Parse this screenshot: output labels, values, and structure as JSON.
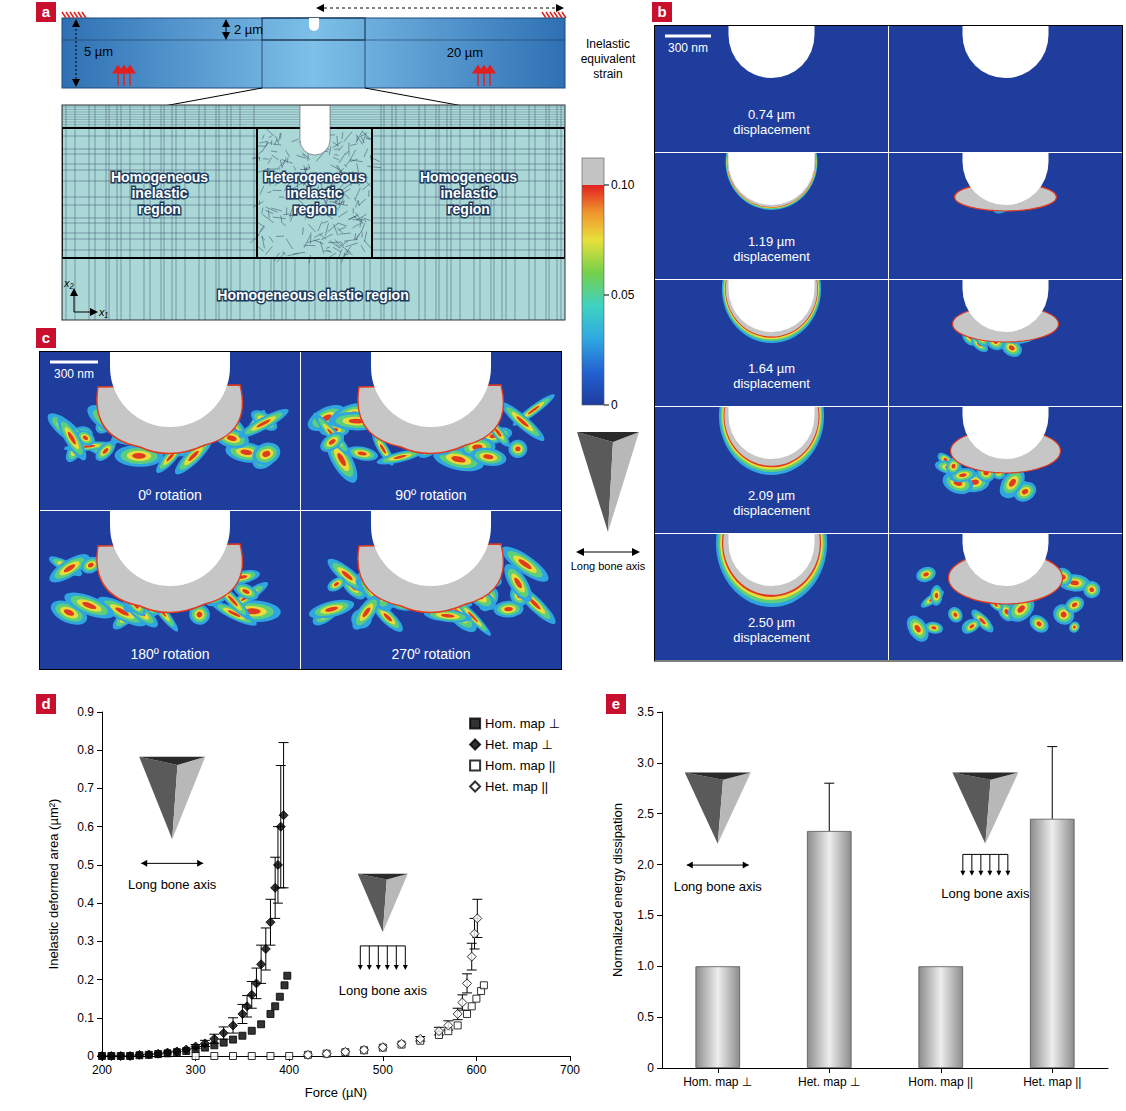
{
  "panel_a": {
    "label": "a",
    "dimensions": [
      "5 µm",
      "2 µm",
      "20 µm"
    ],
    "regions": [
      "Homogeneous inelastic region",
      "Heterogeneous inelastic region",
      "Homogeneous inelastic region",
      "Homogeneous elastic region"
    ],
    "axes": [
      "x₂",
      "x₁"
    ]
  },
  "colorbar": {
    "title": "Inelastic equivalent strain",
    "range": [
      0,
      0.1
    ],
    "ticks": [
      0,
      0.05,
      {
        "value": 0.1,
        "label": "0.10"
      }
    ]
  },
  "panel_b": {
    "label": "b",
    "scale_bar": "300 nm",
    "rows": [
      "0.74 µm displacement",
      "1.19 µm displacement",
      "1.64 µm displacement",
      "2.09 µm displacement",
      "2.50 µm displacement"
    ]
  },
  "panel_c": {
    "label": "c",
    "scale_bar": "300 nm",
    "cells": [
      "0º rotation",
      "90º rotation",
      "180º rotation",
      "270º rotation"
    ]
  },
  "indenter_label": "Long bone axis",
  "chart_data": [
    {
      "label": "d",
      "type": "scatter",
      "xlabel": "Force (µN)",
      "ylabel": "Inelastic deformed area (µm²)",
      "xlim": [
        200,
        700
      ],
      "xticks": [
        200,
        300,
        400,
        500,
        600,
        700
      ],
      "ylim": [
        0,
        0.9
      ],
      "yticks": [
        0,
        0.1,
        0.2,
        0.3,
        0.4,
        0.5,
        0.6,
        0.7,
        0.8,
        0.9
      ],
      "legend": "upper right",
      "annotations": [
        "Long bone axis",
        "Long bone axis"
      ],
      "series": [
        {
          "name": "Hom. map ⊥",
          "marker": "square",
          "color": "#000000",
          "x": [
            200,
            210,
            220,
            230,
            240,
            250,
            260,
            270,
            280,
            290,
            300,
            310,
            320,
            330,
            340,
            350,
            360,
            370,
            380,
            385,
            390,
            395,
            398
          ],
          "values": [
            0,
            0,
            0,
            0,
            0.002,
            0.003,
            0.005,
            0.007,
            0.01,
            0.013,
            0.017,
            0.022,
            0.028,
            0.035,
            0.043,
            0.053,
            0.066,
            0.083,
            0.11,
            0.13,
            0.155,
            0.185,
            0.21
          ]
        },
        {
          "name": "Het. map ⊥",
          "marker": "diamond",
          "color": "#000000",
          "x": [
            200,
            210,
            220,
            230,
            240,
            250,
            260,
            270,
            280,
            290,
            300,
            310,
            320,
            330,
            340,
            350,
            355,
            360,
            365,
            370,
            375,
            380,
            385,
            388,
            391,
            394
          ],
          "values": [
            0,
            0,
            0,
            0,
            0.003,
            0.004,
            0.006,
            0.009,
            0.012,
            0.017,
            0.025,
            0.033,
            0.045,
            0.06,
            0.08,
            0.11,
            0.13,
            0.16,
            0.19,
            0.24,
            0.28,
            0.35,
            0.44,
            0.5,
            0.6,
            0.63
          ],
          "errors": [
            null,
            null,
            null,
            null,
            null,
            null,
            null,
            null,
            null,
            null,
            0.005,
            0.008,
            0.012,
            0.016,
            0.02,
            0.025,
            0.028,
            0.035,
            0.04,
            0.05,
            0.055,
            0.06,
            0.08,
            0.1,
            0.16,
            0.19
          ]
        },
        {
          "name": "Hom. map ||",
          "marker": "open_square",
          "color": "#000000",
          "x": [
            300,
            320,
            340,
            360,
            380,
            400,
            420,
            440,
            460,
            480,
            500,
            520,
            540,
            560,
            570,
            580,
            590,
            595,
            600,
            605,
            608
          ],
          "values": [
            0,
            0,
            0,
            0,
            0,
            0,
            0.003,
            0.006,
            0.01,
            0.015,
            0.022,
            0.03,
            0.04,
            0.055,
            0.065,
            0.08,
            0.11,
            0.13,
            0.15,
            0.17,
            0.185
          ]
        },
        {
          "name": "Het. map ||",
          "marker": "open_diamond",
          "color": "#000000",
          "x": [
            420,
            440,
            460,
            480,
            500,
            520,
            540,
            560,
            570,
            580,
            585,
            590,
            595,
            598,
            601
          ],
          "values": [
            0.003,
            0.006,
            0.011,
            0.016,
            0.023,
            0.032,
            0.045,
            0.065,
            0.08,
            0.11,
            0.14,
            0.19,
            0.26,
            0.32,
            0.36
          ],
          "errors": [
            null,
            null,
            null,
            null,
            null,
            null,
            0.006,
            0.01,
            0.012,
            0.015,
            0.02,
            0.025,
            0.035,
            0.04,
            0.05
          ]
        }
      ]
    },
    {
      "label": "e",
      "type": "bar",
      "ylabel": "Normalized energy dissipation",
      "categories": [
        "Hom. map ⊥",
        "Het. map ⊥",
        "Hom. map ||",
        "Het. map ||"
      ],
      "values": [
        1,
        2.33,
        1,
        2.45
      ],
      "errors": [
        null,
        0.47,
        null,
        0.71
      ],
      "color": "#8c8c8c",
      "ylim": [
        0,
        3.5
      ],
      "yticks": [
        0,
        0.5,
        {
          "value": 1,
          "label": "1.0"
        },
        1.5,
        {
          "value": 2,
          "label": "2.0"
        },
        2.5,
        {
          "value": 3,
          "label": "3.0"
        },
        3.5
      ],
      "annotations": [
        "Long bone axis",
        "Long bone axis"
      ]
    }
  ]
}
